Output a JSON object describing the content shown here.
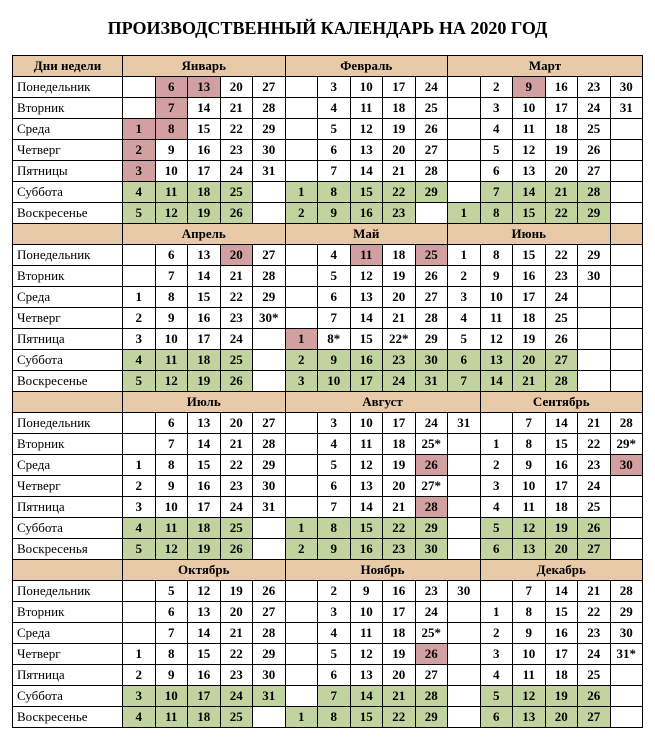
{
  "title": "ПРОИЗВОДСТВЕННЫЙ КАЛЕНДАРЬ НА 2020 ГОД",
  "dayHeader": "Дни недели",
  "colors": {
    "header_bg": "#e8c9a8",
    "holiday_bg": "#d2a0a0",
    "weekend_bg": "#c1d4a0",
    "border": "#000000"
  },
  "quarters": [
    {
      "months": [
        "Январь",
        "Февраль",
        "Март"
      ],
      "weekCols": [
        5,
        5,
        6
      ],
      "rows": [
        {
          "day": "Понедельник",
          "cells": [
            [
              "",
              "6h",
              "13h",
              "20",
              "27"
            ],
            [
              "",
              "3",
              "10",
              "17",
              "24"
            ],
            [
              "",
              "2",
              "9h",
              "16",
              "23",
              "30"
            ]
          ]
        },
        {
          "day": "Вторник",
          "cells": [
            [
              "",
              "7h",
              "14",
              "21",
              "28"
            ],
            [
              "",
              "4",
              "11",
              "18",
              "25"
            ],
            [
              "",
              "3",
              "10",
              "17",
              "24",
              "31"
            ]
          ]
        },
        {
          "day": "Среда",
          "cells": [
            [
              "1h",
              "8h",
              "15",
              "22",
              "29"
            ],
            [
              "",
              "5",
              "12",
              "19",
              "26"
            ],
            [
              "",
              "4",
              "11",
              "18",
              "25",
              ""
            ]
          ]
        },
        {
          "day": "Четверг",
          "cells": [
            [
              "2h",
              "9",
              "16",
              "23",
              "30"
            ],
            [
              "",
              "6",
              "13",
              "20",
              "27"
            ],
            [
              "",
              "5",
              "12",
              "19",
              "26",
              ""
            ]
          ]
        },
        {
          "day": "Пятницы",
          "cells": [
            [
              "3h",
              "10",
              "17",
              "24",
              "31"
            ],
            [
              "",
              "7",
              "14",
              "21",
              "28"
            ],
            [
              "",
              "6",
              "13",
              "20",
              "27",
              ""
            ]
          ]
        },
        {
          "day": "Суббота",
          "cells": [
            [
              "4w",
              "11w",
              "18w",
              "25w",
              ""
            ],
            [
              "1w",
              "8w",
              "15w",
              "22w",
              "29w"
            ],
            [
              "",
              "7w",
              "14w",
              "21w",
              "28w",
              ""
            ]
          ]
        },
        {
          "day": "Воскресенье",
          "cells": [
            [
              "5w",
              "12w",
              "19w",
              "26w",
              ""
            ],
            [
              "2w",
              "9w",
              "16w",
              "23w",
              ""
            ],
            [
              "1w",
              "8w",
              "15w",
              "22w",
              "29w",
              ""
            ]
          ]
        }
      ]
    },
    {
      "months": [
        "Апрель",
        "Май",
        "Июнь"
      ],
      "weekCols": [
        5,
        5,
        5
      ],
      "rows": [
        {
          "day": "Понедельник",
          "cells": [
            [
              "",
              "6",
              "13",
              "20h",
              "27"
            ],
            [
              "",
              "4",
              "11h",
              "18",
              "25h"
            ],
            [
              "1",
              "8",
              "15",
              "22",
              "29"
            ]
          ]
        },
        {
          "day": "Вторник",
          "cells": [
            [
              "",
              "7",
              "14",
              "21",
              "28"
            ],
            [
              "",
              "5",
              "12",
              "19",
              "26"
            ],
            [
              "2",
              "9",
              "16",
              "23",
              "30"
            ]
          ]
        },
        {
          "day": "Среда",
          "cells": [
            [
              "1",
              "8",
              "15",
              "22",
              "29"
            ],
            [
              "",
              "6",
              "13",
              "20",
              "27"
            ],
            [
              "3",
              "10",
              "17",
              "24",
              ""
            ]
          ]
        },
        {
          "day": "Четверг",
          "cells": [
            [
              "2",
              "9",
              "16",
              "23",
              "30*"
            ],
            [
              "",
              "7",
              "14",
              "21",
              "28"
            ],
            [
              "4",
              "11",
              "18",
              "25",
              ""
            ]
          ]
        },
        {
          "day": "Пятница",
          "cells": [
            [
              "3",
              "10",
              "17",
              "24",
              ""
            ],
            [
              "1h",
              "8*",
              "15",
              "22*",
              "29"
            ],
            [
              "5",
              "12",
              "19",
              "26",
              ""
            ]
          ]
        },
        {
          "day": "Суббота",
          "cells": [
            [
              "4w",
              "11w",
              "18w",
              "25w",
              ""
            ],
            [
              "2w",
              "9w",
              "16w",
              "23w",
              "30w"
            ],
            [
              "6w",
              "13w",
              "20w",
              "27w",
              ""
            ]
          ]
        },
        {
          "day": "Воскресенье",
          "cells": [
            [
              "5w",
              "12w",
              "19w",
              "26w",
              ""
            ],
            [
              "3w",
              "10w",
              "17w",
              "24w",
              "31w"
            ],
            [
              "7w",
              "14w",
              "21w",
              "28w",
              ""
            ]
          ]
        }
      ]
    },
    {
      "months": [
        "Июль",
        "Август",
        "Сентябрь"
      ],
      "weekCols": [
        5,
        6,
        5
      ],
      "rows": [
        {
          "day": "Понедельник",
          "cells": [
            [
              "",
              "6",
              "13",
              "20",
              "27"
            ],
            [
              "",
              "3",
              "10",
              "17",
              "24",
              "31"
            ],
            [
              "",
              "7",
              "14",
              "21",
              "28"
            ]
          ]
        },
        {
          "day": "Вторник",
          "cells": [
            [
              "",
              "7",
              "14",
              "21",
              "28"
            ],
            [
              "",
              "4",
              "11",
              "18",
              "25*",
              ""
            ],
            [
              "1",
              "8",
              "15",
              "22",
              "29*"
            ]
          ]
        },
        {
          "day": "Среда",
          "cells": [
            [
              "1",
              "8",
              "15",
              "22",
              "29"
            ],
            [
              "",
              "5",
              "12",
              "19",
              "26h",
              ""
            ],
            [
              "2",
              "9",
              "16",
              "23",
              "30h"
            ]
          ]
        },
        {
          "day": "Четверг",
          "cells": [
            [
              "2",
              "9",
              "16",
              "23",
              "30"
            ],
            [
              "",
              "6",
              "13",
              "20",
              "27*",
              ""
            ],
            [
              "3",
              "10",
              "17",
              "24",
              ""
            ]
          ]
        },
        {
          "day": "Пятница",
          "cells": [
            [
              "3",
              "10",
              "17",
              "24",
              "31"
            ],
            [
              "",
              "7",
              "14",
              "21",
              "28h",
              ""
            ],
            [
              "4",
              "11",
              "18",
              "25",
              ""
            ]
          ]
        },
        {
          "day": "Суббота",
          "cells": [
            [
              "4w",
              "11w",
              "18w",
              "25w",
              ""
            ],
            [
              "1w",
              "8w",
              "15w",
              "22w",
              "29w",
              ""
            ],
            [
              "5w",
              "12w",
              "19w",
              "26w",
              ""
            ]
          ]
        },
        {
          "day": "Воскресенья",
          "cells": [
            [
              "5w",
              "12w",
              "19w",
              "26w",
              ""
            ],
            [
              "2w",
              "9w",
              "16w",
              "23w",
              "30w",
              ""
            ],
            [
              "6w",
              "13w",
              "20w",
              "27w",
              ""
            ]
          ]
        }
      ]
    },
    {
      "months": [
        "Октябрь",
        "Ноябрь",
        "Декабрь"
      ],
      "weekCols": [
        5,
        6,
        5
      ],
      "rows": [
        {
          "day": "Понедельник",
          "cells": [
            [
              "",
              "5",
              "12",
              "19",
              "26"
            ],
            [
              "",
              "2",
              "9",
              "16",
              "23",
              "30"
            ],
            [
              "",
              "7",
              "14",
              "21",
              "28"
            ]
          ]
        },
        {
          "day": "Вторник",
          "cells": [
            [
              "",
              "6",
              "13",
              "20",
              "27"
            ],
            [
              "",
              "3",
              "10",
              "17",
              "24",
              ""
            ],
            [
              "1",
              "8",
              "15",
              "22",
              "29"
            ]
          ]
        },
        {
          "day": "Среда",
          "cells": [
            [
              "",
              "7",
              "14",
              "21",
              "28"
            ],
            [
              "",
              "4",
              "11",
              "18",
              "25*",
              ""
            ],
            [
              "2",
              "9",
              "16",
              "23",
              "30"
            ]
          ]
        },
        {
          "day": "Четверг",
          "cells": [
            [
              "1",
              "8",
              "15",
              "22",
              "29"
            ],
            [
              "",
              "5",
              "12",
              "19",
              "26h",
              ""
            ],
            [
              "3",
              "10",
              "17",
              "24",
              "31*"
            ]
          ]
        },
        {
          "day": "Пятница",
          "cells": [
            [
              "2",
              "9",
              "16",
              "23",
              "30"
            ],
            [
              "",
              "6",
              "13",
              "20",
              "27",
              ""
            ],
            [
              "4",
              "11",
              "18",
              "25",
              ""
            ]
          ]
        },
        {
          "day": "Суббота",
          "cells": [
            [
              "3w",
              "10w",
              "17w",
              "24w",
              "31w"
            ],
            [
              "",
              "7w",
              "14w",
              "21w",
              "28w",
              ""
            ],
            [
              "5w",
              "12w",
              "19w",
              "26w",
              ""
            ]
          ]
        },
        {
          "day": "Воскресенье",
          "cells": [
            [
              "4w",
              "11w",
              "18w",
              "25w",
              ""
            ],
            [
              "1w",
              "8w",
              "15w",
              "22w",
              "29w",
              ""
            ],
            [
              "6w",
              "13w",
              "20w",
              "27w",
              ""
            ]
          ]
        }
      ]
    }
  ]
}
